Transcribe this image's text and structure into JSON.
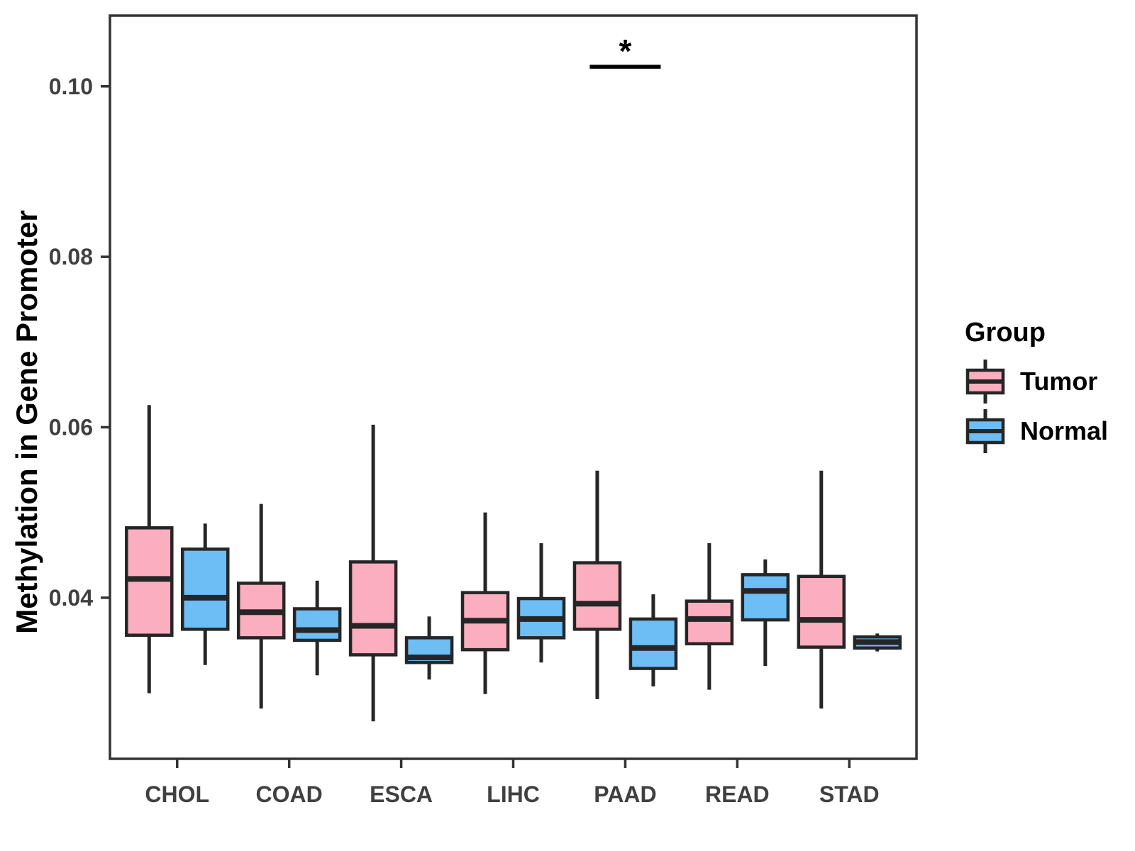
{
  "figure": {
    "y_axis_title": "Methylation in Gene Promoter"
  },
  "legend": {
    "title": "Group",
    "entries": [
      {
        "label": "Tumor",
        "color": "#FAAEBF"
      },
      {
        "label": "Normal",
        "color": "#6CBEF4"
      }
    ]
  },
  "chart_data": {
    "type": "boxplot",
    "title": "",
    "xlabel": "",
    "ylabel": "Methylation in Gene Promoter",
    "grid": false,
    "legend_position": "right",
    "categories": [
      "CHOL",
      "COAD",
      "ESCA",
      "LIHC",
      "PAAD",
      "READ",
      "STAD"
    ],
    "y_axis": {
      "ticks": [
        0.04,
        0.06,
        0.08,
        0.1
      ],
      "domain": [
        0.0211,
        0.1083
      ],
      "format_decimals": 2
    },
    "series": [
      {
        "name": "Tumor",
        "color": "#FAAEBF",
        "boxes": [
          {
            "low": 0.0288,
            "q1": 0.0356,
            "median": 0.0422,
            "q3": 0.0482,
            "high": 0.0626
          },
          {
            "low": 0.027,
            "q1": 0.0353,
            "median": 0.0383,
            "q3": 0.0417,
            "high": 0.051
          },
          {
            "low": 0.0255,
            "q1": 0.0333,
            "median": 0.0367,
            "q3": 0.0442,
            "high": 0.0603
          },
          {
            "low": 0.0287,
            "q1": 0.0339,
            "median": 0.0373,
            "q3": 0.0406,
            "high": 0.05
          },
          {
            "low": 0.0281,
            "q1": 0.0363,
            "median": 0.0393,
            "q3": 0.0441,
            "high": 0.0549
          },
          {
            "low": 0.0292,
            "q1": 0.0346,
            "median": 0.0375,
            "q3": 0.0396,
            "high": 0.0464
          },
          {
            "low": 0.027,
            "q1": 0.0342,
            "median": 0.0374,
            "q3": 0.0425,
            "high": 0.0549
          }
        ]
      },
      {
        "name": "Normal",
        "color": "#6CBEF4",
        "boxes": [
          {
            "low": 0.0321,
            "q1": 0.0363,
            "median": 0.04,
            "q3": 0.0457,
            "high": 0.0487
          },
          {
            "low": 0.0309,
            "q1": 0.035,
            "median": 0.0362,
            "q3": 0.0387,
            "high": 0.042
          },
          {
            "low": 0.0304,
            "q1": 0.0324,
            "median": 0.033,
            "q3": 0.0353,
            "high": 0.0378
          },
          {
            "low": 0.0324,
            "q1": 0.0353,
            "median": 0.0375,
            "q3": 0.0399,
            "high": 0.0464
          },
          {
            "low": 0.0296,
            "q1": 0.0317,
            "median": 0.0341,
            "q3": 0.0375,
            "high": 0.0404
          },
          {
            "low": 0.032,
            "q1": 0.0374,
            "median": 0.0408,
            "q3": 0.0427,
            "high": 0.0445
          },
          {
            "low": 0.0337,
            "q1": 0.0341,
            "median": 0.0348,
            "q3": 0.0354,
            "high": 0.0358
          }
        ]
      }
    ],
    "annotation": {
      "type": "significance",
      "category": "PAAD",
      "label": "*",
      "bar_value": 0.1023,
      "label_value": 0.1048
    },
    "colors": {
      "box_outline": "#262626",
      "axis_text": "#404040",
      "panel_border": "#333333"
    }
  }
}
